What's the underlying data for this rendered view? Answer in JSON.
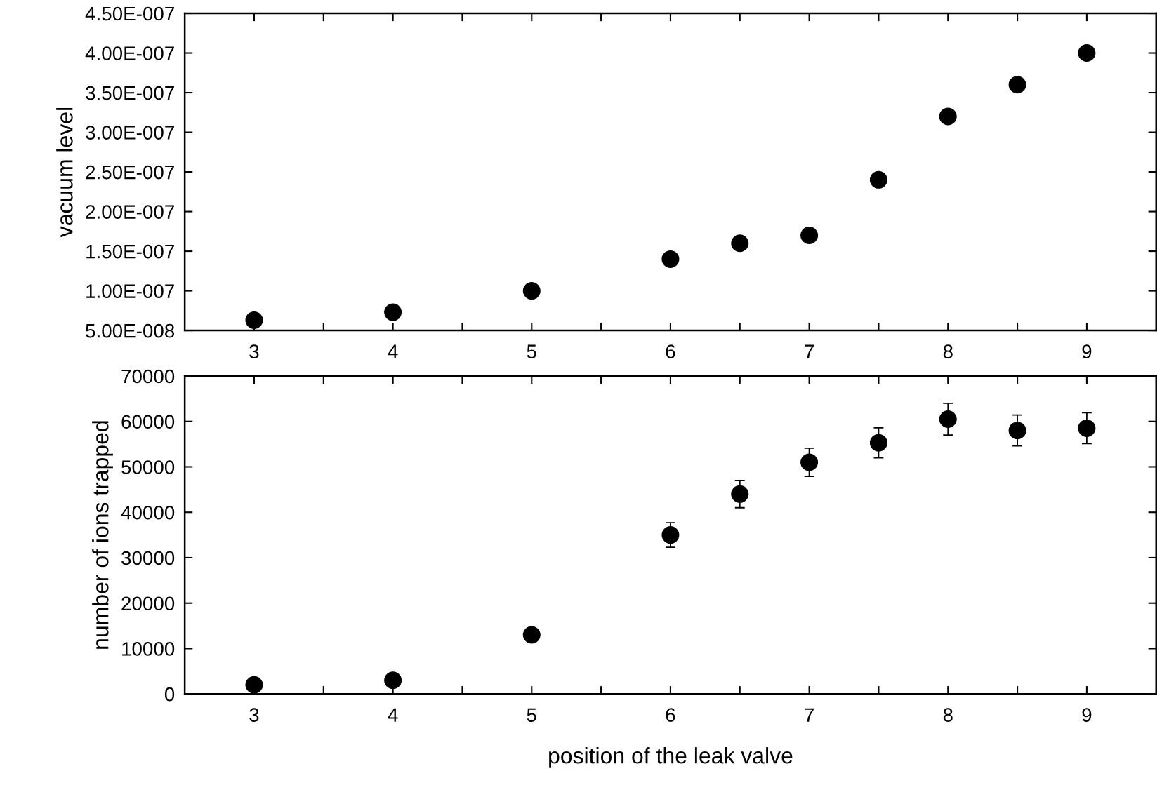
{
  "chart_data": [
    {
      "type": "scatter",
      "ylabel": "vacuum level",
      "x": [
        3,
        4,
        5,
        6,
        6.5,
        7,
        7.5,
        8,
        8.5,
        9
      ],
      "series": [
        {
          "color": "#000000",
          "values": [
            6.3e-08,
            7.3e-08,
            1e-07,
            1.4e-07,
            1.6e-07,
            1.7e-07,
            2.4e-07,
            3.2e-07,
            3.6e-07,
            4e-07
          ]
        }
      ],
      "xlim": [
        2.5,
        9.5
      ],
      "xticks": [
        3,
        {
          "value": 3.5,
          "label": null
        },
        4,
        {
          "value": 4.5,
          "label": null
        },
        5,
        {
          "value": 5.5,
          "label": null
        },
        6,
        {
          "value": 6.5,
          "label": null
        },
        7,
        {
          "value": 7.5,
          "label": null
        },
        8,
        {
          "value": 8.5,
          "label": null
        },
        9
      ],
      "ylim": [
        5e-08,
        4.5e-07
      ],
      "yticks": [
        {
          "value": 5e-08,
          "label": "5.00E-008"
        },
        {
          "value": 1e-07,
          "label": "1.00E-007"
        },
        {
          "value": 1.5e-07,
          "label": "1.50E-007"
        },
        {
          "value": 2e-07,
          "label": "2.00E-007"
        },
        {
          "value": 2.5e-07,
          "label": "2.50E-007"
        },
        {
          "value": 3e-07,
          "label": "3.00E-007"
        },
        {
          "value": 3.5e-07,
          "label": "3.50E-007"
        },
        {
          "value": 4e-07,
          "label": "4.00E-007"
        },
        {
          "value": 4.5e-07,
          "label": "4.50E-007"
        }
      ],
      "marker": "circle",
      "grid": false,
      "legend": false
    },
    {
      "type": "scatter",
      "xlabel": "position of the leak valve",
      "ylabel": "number of ions trapped",
      "x": [
        3,
        4,
        5,
        6,
        6.5,
        7,
        7.5,
        8,
        8.5,
        9
      ],
      "series": [
        {
          "color": "#000000",
          "values": [
            2000,
            3000,
            13000,
            35000,
            44000,
            51000,
            55300,
            60500,
            58000,
            58500
          ],
          "errors": [
            null,
            null,
            1200,
            2700,
            3000,
            3100,
            3300,
            3500,
            3400,
            3400
          ]
        }
      ],
      "xlim": [
        2.5,
        9.5
      ],
      "xticks": [
        3,
        {
          "value": 3.5,
          "label": null
        },
        4,
        {
          "value": 4.5,
          "label": null
        },
        5,
        {
          "value": 5.5,
          "label": null
        },
        6,
        {
          "value": 6.5,
          "label": null
        },
        7,
        {
          "value": 7.5,
          "label": null
        },
        8,
        {
          "value": 8.5,
          "label": null
        },
        9
      ],
      "ylim": [
        0,
        70000
      ],
      "yticks": [
        0,
        10000,
        20000,
        30000,
        40000,
        50000,
        60000,
        70000
      ],
      "marker": "circle",
      "grid": false,
      "legend": false
    }
  ]
}
